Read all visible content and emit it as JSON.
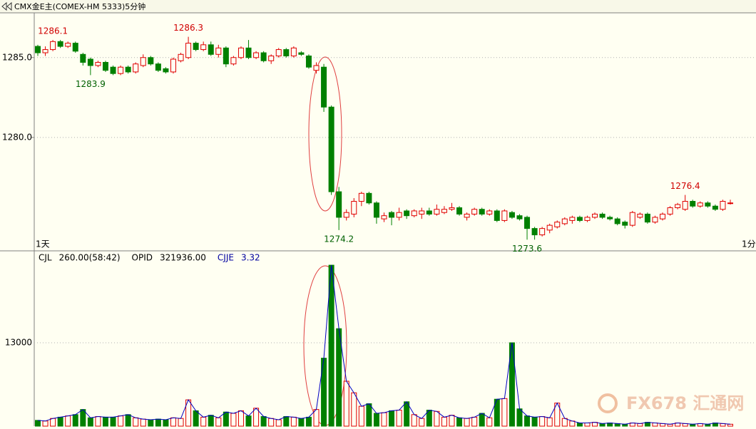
{
  "chart_data": {
    "type": "candlestick",
    "title": "CMX金E主(COMEX-HM 5333)5分钟",
    "left_label": "1天",
    "right_label": "1分",
    "watermark": "FX678 汇通网",
    "ylim": [
      1272.9,
      1287.8
    ],
    "yticks": [
      {
        "value": 1285,
        "label": "1285.0"
      },
      {
        "value": 1280,
        "label": "1280.0"
      }
    ],
    "up_color": "#e00000",
    "down_color": "#008000",
    "open": [
      1285.7,
      1285.3,
      1285.5,
      1286.0,
      1285.7,
      1285.9,
      1285.2,
      1284.9,
      1284.5,
      1284.7,
      1284.4,
      1284.0,
      1284.4,
      1284.1,
      1284.5,
      1285.0,
      1284.6,
      1284.3,
      1284.1,
      1284.8,
      1285.0,
      1285.9,
      1285.5,
      1285.8,
      1285.2,
      1285.6,
      1284.6,
      1285.0,
      1285.6,
      1285.0,
      1285.3,
      1284.8,
      1285.1,
      1285.5,
      1285.1,
      1285.3,
      1285.1,
      1284.2,
      1284.4,
      1281.9,
      1276.6,
      1275.0,
      1275.2,
      1276.0,
      1276.5,
      1275.9,
      1274.9,
      1275.3,
      1275.0,
      1275.4,
      1275.1,
      1275.2,
      1275.4,
      1275.2,
      1275.3,
      1275.5,
      1275.6,
      1275.0,
      1275.2,
      1275.5,
      1275.2,
      1275.4,
      1274.8,
      1275.3,
      1275.1,
      1275.0,
      1274.3,
      1273.9,
      1274.2,
      1274.4,
      1274.6,
      1274.8,
      1275.0,
      1274.8,
      1275.0,
      1275.2,
      1275.0,
      1274.9,
      1274.7,
      1274.5,
      1275.0,
      1275.2,
      1274.7,
      1274.9,
      1275.2,
      1275.6,
      1275.5,
      1276.0,
      1275.7,
      1275.9,
      1275.7,
      1275.5,
      1275.9
    ],
    "high": [
      1285.8,
      1285.7,
      1286.1,
      1286.1,
      1286.0,
      1286.0,
      1285.3,
      1285.0,
      1284.8,
      1284.8,
      1284.5,
      1284.5,
      1284.5,
      1284.7,
      1285.2,
      1285.1,
      1284.7,
      1284.4,
      1285.0,
      1285.3,
      1286.3,
      1286.0,
      1286.0,
      1286.0,
      1285.8,
      1285.7,
      1285.1,
      1285.7,
      1286.1,
      1285.4,
      1285.4,
      1285.2,
      1285.6,
      1285.6,
      1285.7,
      1285.4,
      1285.2,
      1284.7,
      1284.6,
      1282.0,
      1276.9,
      1275.5,
      1276.2,
      1276.6,
      1276.6,
      1276.0,
      1275.3,
      1275.4,
      1275.6,
      1275.5,
      1275.5,
      1275.6,
      1275.6,
      1275.8,
      1275.7,
      1275.9,
      1275.7,
      1275.3,
      1275.6,
      1275.6,
      1275.5,
      1275.5,
      1275.5,
      1275.4,
      1275.2,
      1275.1,
      1274.4,
      1274.4,
      1274.6,
      1274.8,
      1275.0,
      1275.1,
      1275.1,
      1275.1,
      1275.3,
      1275.3,
      1275.1,
      1275.0,
      1274.8,
      1275.4,
      1275.3,
      1275.3,
      1275.1,
      1275.3,
      1275.7,
      1275.9,
      1276.4,
      1276.1,
      1276.0,
      1276.0,
      1275.8,
      1276.1,
      1276.1
    ],
    "low": [
      1285.1,
      1285.1,
      1285.4,
      1285.6,
      1285.6,
      1285.3,
      1284.5,
      1283.9,
      1284.4,
      1284.1,
      1283.9,
      1283.9,
      1284.0,
      1284.0,
      1284.4,
      1284.5,
      1284.1,
      1284.0,
      1284.0,
      1284.7,
      1284.9,
      1285.4,
      1285.4,
      1285.1,
      1285.0,
      1284.4,
      1284.5,
      1284.9,
      1284.9,
      1284.9,
      1284.7,
      1284.6,
      1285.0,
      1285.0,
      1285.0,
      1285.1,
      1284.3,
      1284.0,
      1281.6,
      1276.4,
      1274.2,
      1274.8,
      1275.0,
      1275.7,
      1275.8,
      1274.6,
      1274.7,
      1274.5,
      1274.8,
      1274.9,
      1275.0,
      1274.9,
      1275.1,
      1275.1,
      1275.2,
      1275.4,
      1275.1,
      1274.8,
      1275.1,
      1275.1,
      1275.1,
      1274.7,
      1274.7,
      1274.9,
      1274.8,
      1273.6,
      1273.6,
      1273.8,
      1274.0,
      1274.3,
      1274.5,
      1274.6,
      1274.7,
      1274.7,
      1274.9,
      1274.9,
      1274.8,
      1274.5,
      1274.3,
      1274.4,
      1274.9,
      1274.6,
      1274.6,
      1274.8,
      1275.1,
      1275.5,
      1275.4,
      1275.6,
      1275.6,
      1275.6,
      1275.4,
      1275.4,
      1275.8
    ],
    "close": [
      1285.3,
      1285.5,
      1286.0,
      1285.7,
      1285.9,
      1285.4,
      1284.7,
      1284.5,
      1284.7,
      1284.2,
      1284.0,
      1284.4,
      1284.1,
      1284.6,
      1285.0,
      1284.6,
      1284.2,
      1284.1,
      1284.9,
      1285.2,
      1285.9,
      1285.5,
      1285.8,
      1285.2,
      1285.6,
      1284.6,
      1285.0,
      1285.6,
      1285.0,
      1285.3,
      1284.8,
      1285.1,
      1285.5,
      1285.1,
      1285.6,
      1285.2,
      1284.4,
      1284.5,
      1281.9,
      1276.6,
      1275.0,
      1275.3,
      1276.0,
      1276.5,
      1275.9,
      1275.0,
      1275.1,
      1275.0,
      1275.3,
      1275.1,
      1275.4,
      1275.4,
      1275.2,
      1275.5,
      1275.5,
      1275.6,
      1275.2,
      1275.2,
      1275.5,
      1275.2,
      1275.4,
      1274.8,
      1275.4,
      1275.0,
      1274.9,
      1274.3,
      1273.9,
      1274.3,
      1274.5,
      1274.7,
      1274.9,
      1275.0,
      1274.8,
      1275.0,
      1275.2,
      1275.0,
      1274.9,
      1274.6,
      1274.5,
      1275.3,
      1275.2,
      1274.7,
      1275.0,
      1275.2,
      1275.6,
      1275.8,
      1276.0,
      1275.7,
      1275.9,
      1275.7,
      1275.5,
      1276.0,
      1275.9
    ],
    "annotations": [
      1286.1,
      1286.3,
      1283.9,
      1274.2,
      1273.6,
      1276.4
    ],
    "volume": {
      "legend": [
        {
          "name": "CJL",
          "value": "260.00(58:42)"
        },
        {
          "name": "OPID",
          "value": "321936.00"
        },
        {
          "name": "CJJE",
          "value": "3.32"
        }
      ],
      "line_color": "#0000c0",
      "ylim": [
        0,
        27333
      ],
      "yticks": [
        13000
      ],
      "values": [
        900,
        800,
        1200,
        1400,
        1600,
        1800,
        2600,
        1300,
        1500,
        1400,
        1400,
        1600,
        1800,
        1300,
        1100,
        1000,
        1100,
        1000,
        1300,
        1200,
        4100,
        2400,
        1400,
        1700,
        1300,
        2200,
        2000,
        2400,
        1600,
        2800,
        1500,
        1200,
        1000,
        1500,
        1400,
        1200,
        1400,
        2600,
        10600,
        25100,
        15200,
        7000,
        5200,
        3100,
        3500,
        2000,
        2100,
        2400,
        2500,
        3800,
        1800,
        1200,
        2500,
        2300,
        1400,
        1700,
        1300,
        1200,
        1400,
        2000,
        1300,
        4200,
        4300,
        13000,
        2700,
        1600,
        1400,
        1500,
        1300,
        3600,
        1200,
        800,
        500,
        500,
        600,
        400,
        500,
        400,
        300,
        500,
        400,
        600,
        500,
        400,
        300,
        500,
        400,
        300,
        400,
        300,
        500,
        400,
        300
      ]
    }
  }
}
